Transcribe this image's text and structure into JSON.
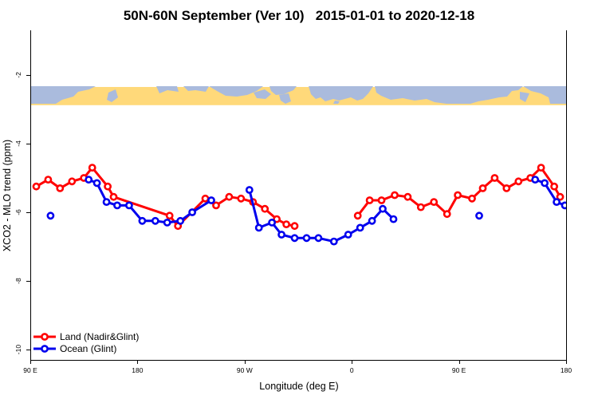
{
  "chart_data": {
    "type": "line",
    "title": "50N-60N September (Ver 10)   2015-01-01 to 2020-12-18",
    "xlabel": "Longitude (deg E)",
    "ylabel": "XCO2 - MLO trend (ppm)",
    "xlim": [
      90,
      540
    ],
    "ylim": [
      -10.3,
      -0.7
    ],
    "x_ticks": [
      {
        "value": 90,
        "label": "90 E"
      },
      {
        "value": 180,
        "label": "180"
      },
      {
        "value": 270,
        "label": "90 W"
      },
      {
        "value": 360,
        "label": "0"
      },
      {
        "value": 450,
        "label": "90 E"
      },
      {
        "value": 540,
        "label": "180"
      }
    ],
    "y_ticks": [
      {
        "value": -2,
        "label": "-2"
      },
      {
        "value": -4,
        "label": "-4"
      },
      {
        "value": -6,
        "label": "-6"
      },
      {
        "value": -8,
        "label": "-8"
      },
      {
        "value": -10,
        "label": "-10"
      }
    ],
    "map_strip": {
      "y_top": -2.35,
      "y_bottom": -2.88,
      "land_color": "#aabbdd",
      "ocean_color": "#ffd97a"
    },
    "legend": {
      "position": "bottom-left"
    },
    "series": [
      {
        "name": "Land (Nadir&Glint)",
        "color": "#ff0000",
        "points": [
          [
            95,
            -5.25
          ],
          [
            105,
            -5.05
          ],
          [
            115,
            -5.3
          ],
          [
            125,
            -5.1
          ],
          [
            135,
            -5.0
          ],
          [
            142,
            -4.7
          ],
          [
            155,
            -5.25
          ],
          [
            160,
            -5.55
          ],
          [
            207,
            -6.1
          ],
          [
            214,
            -6.4
          ],
          [
            237,
            -5.6
          ],
          [
            246,
            -5.8
          ],
          [
            257,
            -5.55
          ],
          [
            267,
            -5.6
          ],
          [
            277,
            -5.7
          ],
          [
            287,
            -5.9
          ],
          [
            297,
            -6.2
          ],
          [
            305,
            -6.35
          ],
          [
            312,
            -6.4
          ],
          [
            null,
            null
          ],
          [
            365,
            -6.1
          ],
          [
            375,
            -5.65
          ],
          [
            385,
            -5.65
          ],
          [
            396,
            -5.5
          ],
          [
            407,
            -5.55
          ],
          [
            418,
            -5.85
          ],
          [
            429,
            -5.7
          ],
          [
            440,
            -6.05
          ],
          [
            449,
            -5.5
          ],
          [
            461,
            -5.6
          ],
          [
            470,
            -5.3
          ],
          [
            480,
            -5.0
          ],
          [
            490,
            -5.3
          ],
          [
            500,
            -5.1
          ],
          [
            510,
            -5.0
          ],
          [
            519,
            -4.7
          ],
          [
            530,
            -5.25
          ],
          [
            535,
            -5.55
          ]
        ]
      },
      {
        "name": "Ocean (Glint)",
        "color": "#0000ee",
        "points": [
          [
            107,
            -6.1
          ],
          [
            null,
            null
          ],
          [
            139,
            -5.05
          ],
          [
            146,
            -5.15
          ],
          [
            154,
            -5.7
          ],
          [
            163,
            -5.8
          ],
          [
            173,
            -5.8
          ],
          [
            184,
            -6.25
          ],
          [
            195,
            -6.25
          ],
          [
            205,
            -6.3
          ],
          [
            216,
            -6.25
          ],
          [
            226,
            -6.0
          ],
          [
            242,
            -5.65
          ],
          [
            null,
            null
          ],
          [
            274,
            -5.35
          ],
          [
            282,
            -6.45
          ],
          [
            293,
            -6.3
          ],
          [
            301,
            -6.65
          ],
          [
            312,
            -6.75
          ],
          [
            322,
            -6.75
          ],
          [
            332,
            -6.75
          ],
          [
            345,
            -6.85
          ],
          [
            357,
            -6.65
          ],
          [
            367,
            -6.45
          ],
          [
            377,
            -6.25
          ],
          [
            386,
            -5.9
          ],
          [
            395,
            -6.2
          ],
          [
            null,
            null
          ],
          [
            467,
            -6.1
          ],
          [
            null,
            null
          ],
          [
            514,
            -5.05
          ],
          [
            522,
            -5.15
          ],
          [
            532,
            -5.7
          ],
          [
            539,
            -5.8
          ],
          [
            545,
            -5.8
          ]
        ]
      }
    ]
  }
}
